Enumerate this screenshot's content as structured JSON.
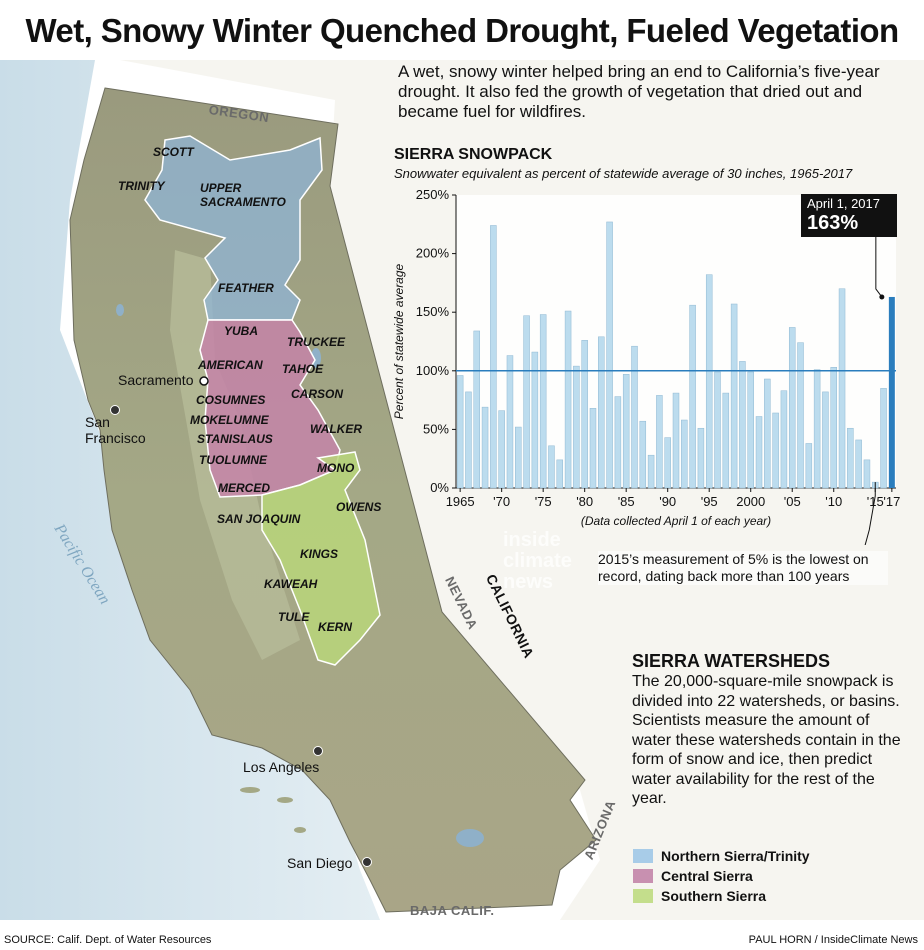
{
  "title": "Wet, Snowy Winter Quenched Drought, Fueled Vegetation",
  "intro": "A wet, snowy winter helped bring an end to California’s five-year drought. It also fed the growth of vegetation that dried out and became fuel for wildfires.",
  "map": {
    "regions": [
      "OREGON",
      "NEVADA",
      "CALIFORNIA",
      "ARIZONA",
      "BAJA CALIF."
    ],
    "ocean": "Pacific Ocean",
    "cities": [
      {
        "name": "Sacramento"
      },
      {
        "name": "San Francisco",
        "line1": "San",
        "line2": "Francisco"
      },
      {
        "name": "Los Angeles"
      },
      {
        "name": "San Diego"
      }
    ],
    "watersheds": [
      "SCOTT",
      "TRINITY",
      "UPPER SACRAMENTO",
      "FEATHER",
      "YUBA",
      "TRUCKEE",
      "AMERICAN",
      "TAHOE",
      "CARSON",
      "COSUMNES",
      "MOKELUMNE",
      "STANISLAUS",
      "WALKER",
      "TUOLUMNE",
      "MONO",
      "MERCED",
      "OWENS",
      "SAN JOAQUIN",
      "KINGS",
      "KAWEAH",
      "TULE",
      "KERN"
    ],
    "watershed_labels": {
      "upper_sacramento_1": "UPPER",
      "upper_sacramento_2": "SACRAMENTO"
    }
  },
  "colors": {
    "northern": "#8fb4d6",
    "central": "#c484a8",
    "southern": "#b8d67a",
    "bar": "#bcdcee",
    "bar_highlight": "#2a7dbd",
    "reference_line": "#2a7dbd"
  },
  "chart_data": {
    "type": "bar",
    "title": "SIERRA SNOWPACK",
    "subtitle": "Snowwater equivalent as percent of statewide average of 30 inches, 1965-2017",
    "ylabel": "Percent of statewide average",
    "xlabel": "(Data collected April 1 of each year)",
    "ylim": [
      0,
      250
    ],
    "yticks": [
      "0%",
      "50%",
      "100%",
      "150%",
      "200%",
      "250%"
    ],
    "xticks": [
      "1965",
      "'70",
      "'75",
      "'80",
      "'85",
      "'90",
      "'95",
      "2000",
      "'05",
      "'10",
      "'15",
      "'17"
    ],
    "reference_line": 100,
    "grid": false,
    "x": [
      1965,
      1966,
      1967,
      1968,
      1969,
      1970,
      1971,
      1972,
      1973,
      1974,
      1975,
      1976,
      1977,
      1978,
      1979,
      1980,
      1981,
      1982,
      1983,
      1984,
      1985,
      1986,
      1987,
      1988,
      1989,
      1990,
      1991,
      1992,
      1993,
      1994,
      1995,
      1996,
      1997,
      1998,
      1999,
      2000,
      2001,
      2002,
      2003,
      2004,
      2005,
      2006,
      2007,
      2008,
      2009,
      2010,
      2011,
      2012,
      2013,
      2014,
      2015,
      2016,
      2017
    ],
    "values": [
      96,
      82,
      134,
      69,
      224,
      66,
      113,
      52,
      147,
      116,
      148,
      36,
      24,
      151,
      104,
      126,
      68,
      129,
      227,
      78,
      97,
      121,
      57,
      28,
      79,
      43,
      81,
      58,
      156,
      51,
      182,
      99,
      81,
      157,
      108,
      99,
      61,
      93,
      64,
      83,
      137,
      124,
      38,
      101,
      82,
      103,
      170,
      51,
      41,
      24,
      5,
      85,
      163
    ],
    "highlight": {
      "x": 2017,
      "value": 163
    },
    "annotations": [
      {
        "date": "April 1, 2017",
        "value_label": "163%"
      },
      {
        "text": "2015’s measurement of 5% is the lowest on record, dating back more than 100 years"
      }
    ]
  },
  "watersheds_section": {
    "heading": "SIERRA WATERSHEDS",
    "body": "The 20,000-square-mile snowpack is divided into 22 watersheds, or basins. Scientists measure the amount of water these watersheds contain in the form of snow and ice, then predict water availability for the rest of the year."
  },
  "legend": [
    {
      "label": "Northern Sierra/Trinity",
      "color": "#a8cce8"
    },
    {
      "label": "Central Sierra",
      "color": "#c890b0"
    },
    {
      "label": "Southern Sierra",
      "color": "#c4de8c"
    }
  ],
  "watermark": [
    "inside",
    "climate",
    "news"
  ],
  "source": "SOURCE: Calif. Dept. of Water Resources",
  "credit": "PAUL HORN / InsideClimate News"
}
